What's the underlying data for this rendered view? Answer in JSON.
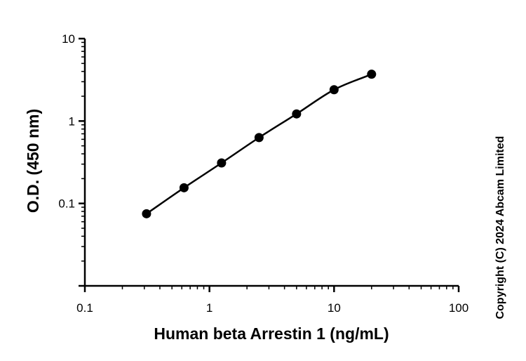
{
  "chart_data": {
    "type": "scatter",
    "title": "",
    "xlabel": "Human beta Arrestin 1 (ng/mL)",
    "ylabel": "O.D. (450 nm)",
    "x_scale": "log",
    "y_scale": "log",
    "xlim": [
      0.1,
      100
    ],
    "ylim": [
      0.01,
      10
    ],
    "x_ticks": [
      {
        "value": 0.1,
        "label": "0.1"
      },
      {
        "value": 1,
        "label": "1"
      },
      {
        "value": 10,
        "label": "10"
      },
      {
        "value": 100,
        "label": "100"
      }
    ],
    "y_ticks": [
      {
        "value": 0.1,
        "label": "0.1"
      },
      {
        "value": 1,
        "label": "1"
      },
      {
        "value": 10,
        "label": "10"
      }
    ],
    "grid": false,
    "legend": "none",
    "fit_curve": true,
    "series": [
      {
        "x": [
          0.3125,
          0.625,
          1.25,
          2.5,
          5,
          10,
          20
        ],
        "y": [
          0.075,
          0.155,
          0.31,
          0.63,
          1.22,
          2.4,
          3.7
        ]
      }
    ],
    "color": "#000000"
  },
  "copyright": "Copyright (C) 2024 Abcam Limited"
}
